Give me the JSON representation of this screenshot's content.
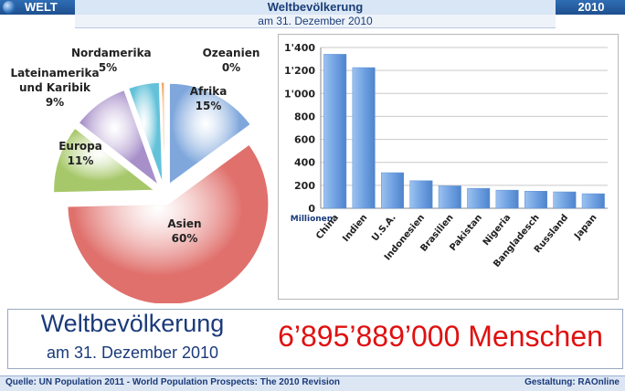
{
  "header": {
    "left_label": "WELT",
    "title": "Weltbevölkerung",
    "subtitle": "am 31. Dezember 2010",
    "year": "2010"
  },
  "chart_data": [
    {
      "type": "pie",
      "slices": [
        {
          "label": "Afrika",
          "percent_label": "15%",
          "value": 15,
          "color": "#7fa7dc"
        },
        {
          "label": "Asien",
          "percent_label": "60%",
          "value": 60,
          "color": "#e0706c"
        },
        {
          "label": "Europa",
          "percent_label": "11%",
          "value": 11,
          "color": "#a7c86a"
        },
        {
          "label": "Lateinamerika\nund Karibik",
          "percent_label": "9%",
          "value": 9,
          "color": "#a78fc9"
        },
        {
          "label": "Nordamerika",
          "percent_label": "5%",
          "value": 5,
          "color": "#63c2d9"
        },
        {
          "label": "Ozeanien",
          "percent_label": "0%",
          "value": 0.5,
          "color": "#f0a35a"
        }
      ]
    },
    {
      "type": "bar",
      "categories": [
        "China",
        "Indien",
        "U.S.A.",
        "Indonesien",
        "Brasilien",
        "Pakistan",
        "Nigeria",
        "Bangladesch",
        "Russland",
        "Japan"
      ],
      "values": [
        1341,
        1225,
        310,
        240,
        195,
        174,
        158,
        149,
        143,
        127
      ],
      "ylim": [
        0,
        1400
      ],
      "yticks": [
        "0",
        "200",
        "400",
        "600",
        "800",
        "1'000",
        "1'200",
        "1'400"
      ],
      "ylabel": "Millionen",
      "grid": true,
      "color": "#6d9fe0"
    }
  ],
  "info": {
    "title": "Weltbevölkerung",
    "date": "am 31. Dezember 2010",
    "total": "6’895’889’000 Menschen"
  },
  "footer": {
    "source": "Quelle: UN Population 2011 - World Population Prospects: The 2010 Revision",
    "credit": "Gestaltung: RAOnline"
  }
}
